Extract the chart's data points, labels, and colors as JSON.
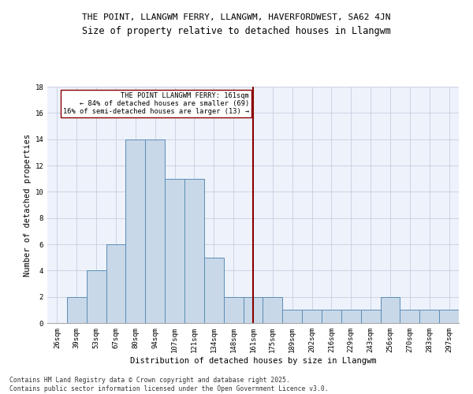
{
  "title1": "THE POINT, LLANGWM FERRY, LLANGWM, HAVERFORDWEST, SA62 4JN",
  "title2": "Size of property relative to detached houses in Llangwm",
  "xlabel": "Distribution of detached houses by size in Llangwm",
  "ylabel": "Number of detached properties",
  "categories": [
    "26sqm",
    "39sqm",
    "53sqm",
    "67sqm",
    "80sqm",
    "94sqm",
    "107sqm",
    "121sqm",
    "134sqm",
    "148sqm",
    "161sqm",
    "175sqm",
    "189sqm",
    "202sqm",
    "216sqm",
    "229sqm",
    "243sqm",
    "256sqm",
    "270sqm",
    "283sqm",
    "297sqm"
  ],
  "values": [
    0,
    2,
    4,
    6,
    14,
    14,
    11,
    11,
    5,
    2,
    2,
    2,
    1,
    1,
    1,
    1,
    1,
    2,
    1,
    1,
    1
  ],
  "bar_color": "#c8d8e8",
  "bar_edge_color": "#5b8db8",
  "vline_x_index": 10,
  "vline_color": "#8b0000",
  "annotation_line1": "THE POINT LLANGWM FERRY: 161sqm",
  "annotation_line2": "← 84% of detached houses are smaller (69)",
  "annotation_line3": "16% of semi-detached houses are larger (13) →",
  "annotation_box_color": "#8b0000",
  "ylim": [
    0,
    18
  ],
  "yticks": [
    0,
    2,
    4,
    6,
    8,
    10,
    12,
    14,
    16,
    18
  ],
  "footnote1": "Contains HM Land Registry data © Crown copyright and database right 2025.",
  "footnote2": "Contains public sector information licensed under the Open Government Licence v3.0.",
  "bg_color": "#eef2fb",
  "grid_color": "#c8cde0",
  "title1_fontsize": 8.0,
  "title2_fontsize": 8.5,
  "tick_fontsize": 6.5,
  "label_fontsize": 7.5,
  "annot_fontsize": 6.2,
  "footnote_fontsize": 5.8
}
